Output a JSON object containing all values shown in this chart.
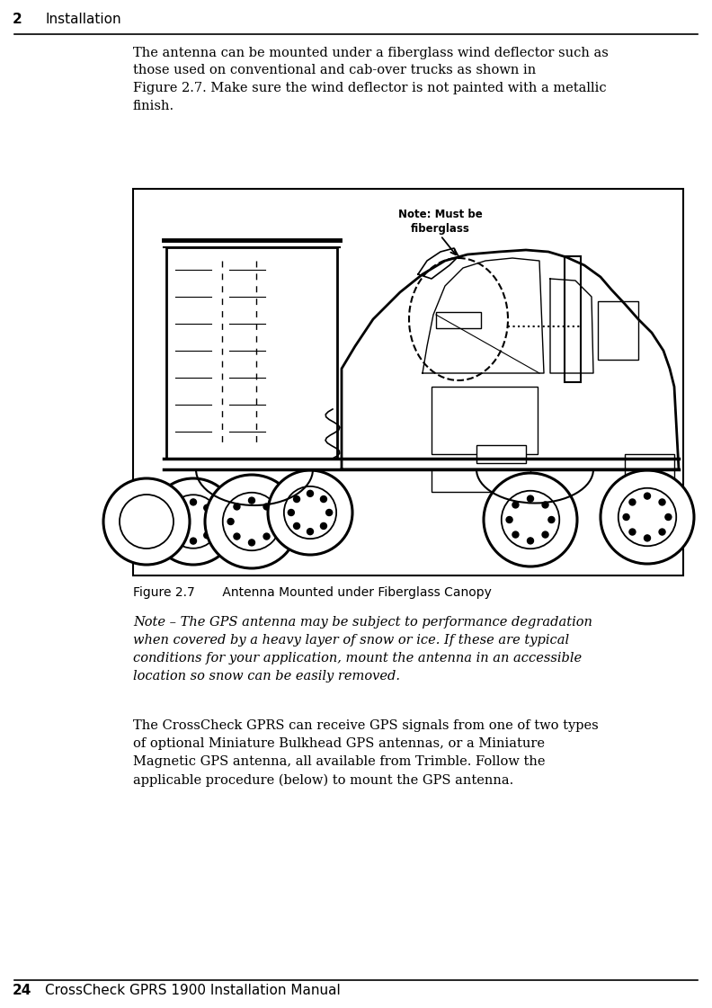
{
  "page_width": 7.92,
  "page_height": 11.21,
  "bg_color": "#ffffff",
  "header_chapter": "2",
  "header_title": "Installation",
  "footer_page": "24",
  "footer_title": "CrossCheck GPRS 1900 Installation Manual",
  "para1": "The antenna can be mounted under a fiberglass wind deflector such as\nthose used on conventional and cab-over trucks as shown in\nFigure 2.7. Make sure the wind deflector is not painted with a metallic\nfinish.",
  "figure_caption": "Figure 2.7       Antenna Mounted under Fiberglass Canopy",
  "note_text": "Note – The GPS antenna may be subject to performance degradation\nwhen covered by a heavy layer of snow or ice. If these are typical\nconditions for your application, mount the antenna in an accessible\nlocation so snow can be easily removed.",
  "para2": "The CrossCheck GPRS can receive GPS signals from one of two types\nof optional Miniature Bulkhead GPS antennas, or a Miniature\nMagnetic GPS antenna, all available from Trimble. Follow the\napplicable procedure (below) to mount the GPS antenna.",
  "note_label": "Note: Must be\nfiberglass",
  "text_color": "#000000"
}
